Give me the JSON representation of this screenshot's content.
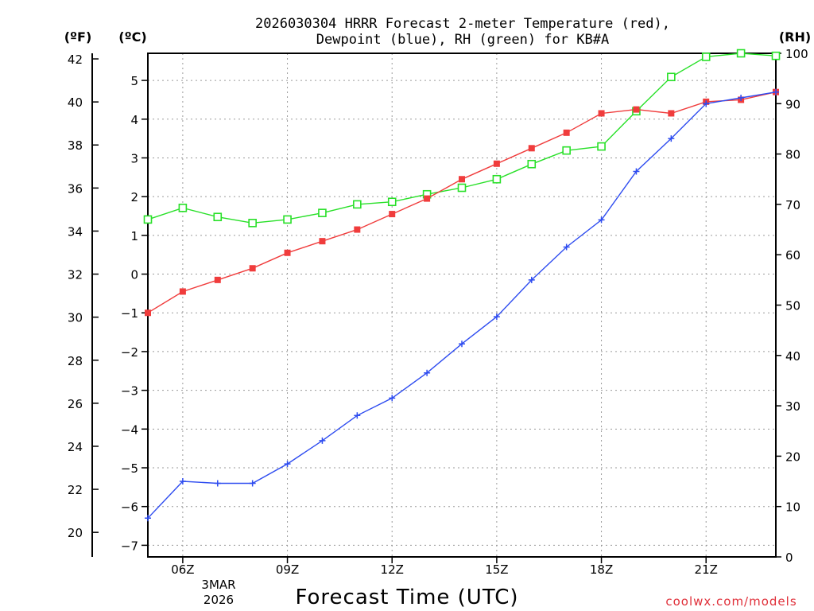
{
  "chart_data": {
    "type": "line",
    "title": [
      "2026030304 HRRR Forecast 2-meter Temperature (red),",
      "Dewpoint (blue), RH (green) for KB#A"
    ],
    "xlabel": "Forecast Time (UTC)",
    "units": {
      "f": "(ºF)",
      "c": "(ºC)",
      "rh": "(RH)"
    },
    "date_label": [
      "3MAR",
      "2026"
    ],
    "credit": "coolwx.com/models",
    "x_range": [
      3,
      21
    ],
    "x": [
      3,
      4,
      5,
      6,
      7,
      8,
      9,
      10,
      11,
      12,
      13,
      14,
      15,
      16,
      17,
      18,
      19,
      20,
      21
    ],
    "x_ticks": [
      {
        "x": 4,
        "label": "06Z"
      },
      {
        "x": 7,
        "label": "09Z"
      },
      {
        "x": 10,
        "label": "12Z"
      },
      {
        "x": 13,
        "label": "15Z"
      },
      {
        "x": 16,
        "label": "18Z"
      },
      {
        "x": 19,
        "label": "21Z"
      }
    ],
    "y_left_celsius": {
      "range": [
        -7.3,
        5.7
      ],
      "ticks": [
        -7,
        -6,
        -5,
        -4,
        -3,
        -2,
        -1,
        0,
        1,
        2,
        3,
        4,
        5
      ]
    },
    "y_left_fahrenheit": {
      "ticks": [
        20,
        22,
        24,
        26,
        28,
        30,
        32,
        34,
        36,
        38,
        40,
        42
      ]
    },
    "y_right_rh": {
      "range": [
        0,
        100
      ],
      "ticks": [
        0,
        10,
        20,
        30,
        40,
        50,
        60,
        70,
        80,
        90,
        100
      ]
    },
    "grid": true,
    "series": [
      {
        "name": "Temperature",
        "axis": "celsius",
        "color": "#f03c3c",
        "marker": "filled-square",
        "values": [
          -1.0,
          -0.45,
          -0.15,
          0.15,
          0.55,
          0.85,
          1.15,
          1.55,
          1.95,
          2.45,
          2.85,
          3.25,
          3.65,
          4.15,
          4.25,
          4.15,
          4.45,
          4.5,
          4.7
        ]
      },
      {
        "name": "Dewpoint",
        "axis": "celsius",
        "color": "#2e4cf0",
        "marker": "plus",
        "values": [
          -6.3,
          -5.35,
          -5.4,
          -5.4,
          -4.9,
          -4.3,
          -3.65,
          -3.2,
          -2.55,
          -1.8,
          -1.1,
          -0.15,
          0.7,
          1.4,
          2.65,
          3.5,
          4.4,
          4.55,
          4.7
        ]
      },
      {
        "name": "RH",
        "axis": "rh",
        "color": "#28e028",
        "marker": "open-square",
        "values": [
          67,
          69.3,
          67.5,
          66.3,
          67,
          68.3,
          70,
          70.5,
          72,
          73.3,
          75,
          78,
          80.7,
          81.5,
          88.5,
          95.3,
          99.3,
          100,
          99.5
        ]
      }
    ]
  }
}
